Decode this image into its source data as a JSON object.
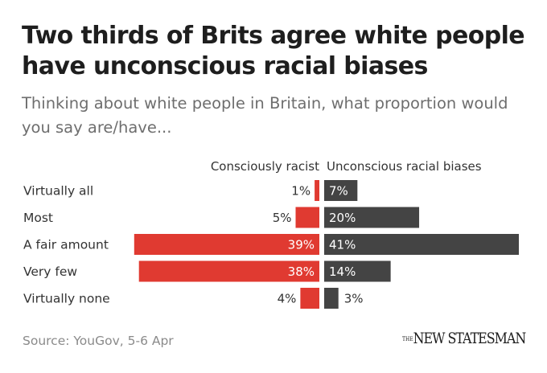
{
  "chart_data": {
    "type": "bar",
    "title": "Two thirds of Brits agree white people have unconscious racial biases",
    "subtitle": "Thinking about white people in Britain, what proportion would you say are/have...",
    "categories": [
      "Virtually all",
      "Most",
      "A fair amount",
      "Very few",
      "Virtually none"
    ],
    "series": [
      {
        "name": "Consciously racist",
        "values": [
          1,
          5,
          39,
          38,
          4
        ],
        "color": "#e03a31",
        "direction": "left"
      },
      {
        "name": "Unconscious racial biases",
        "values": [
          7,
          20,
          41,
          14,
          3
        ],
        "color": "#444444",
        "direction": "right"
      }
    ],
    "value_suffix": "%",
    "xlim": [
      0,
      41
    ],
    "grid": false,
    "legend": "column headers",
    "source": "Source: YouGov, 5-6 Apr",
    "brand": "NEW STATESMAN",
    "brand_prefix": "THE"
  }
}
